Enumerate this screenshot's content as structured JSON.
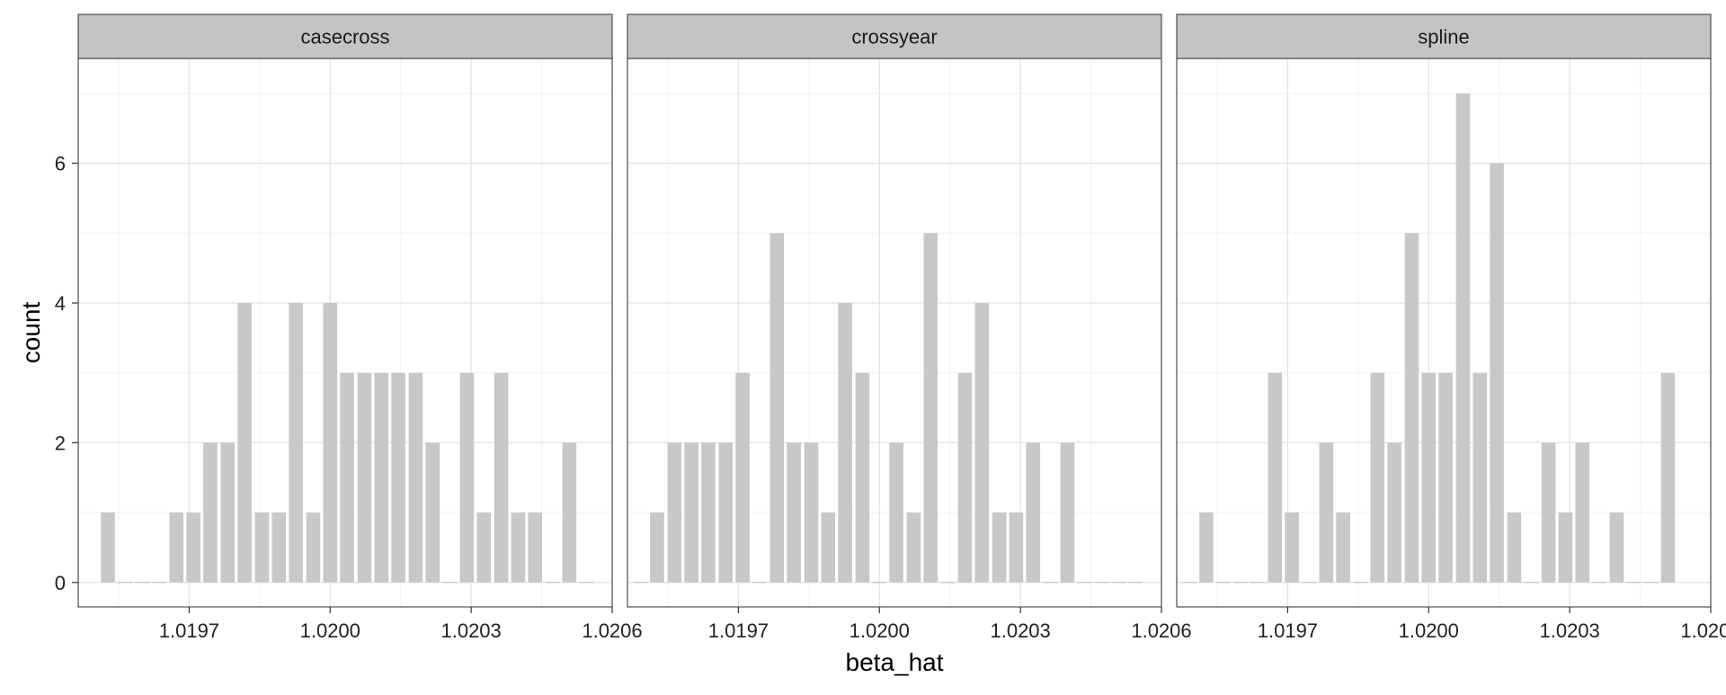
{
  "chart_data": {
    "type": "bar",
    "subtype": "faceted histogram",
    "xlabel": "beta_hat",
    "ylabel": "count",
    "ylim": [
      0,
      7
    ],
    "y_ticks": [
      0,
      2,
      4,
      6
    ],
    "x_ticks": [
      1.0197,
      1.02,
      1.0203,
      1.0206
    ],
    "x_tick_labels": [
      "1.0197",
      "1.0200",
      "1.0203",
      "1.0206"
    ],
    "grid": true,
    "bar_color": "#c8c8c8",
    "strip_color": "#c4c4c4",
    "facets": [
      {
        "name": "casecross",
        "bins": [
          {
            "x": 1.019527,
            "count": 1
          },
          {
            "x": 1.019564,
            "count": 0
          },
          {
            "x": 1.0196,
            "count": 0
          },
          {
            "x": 1.019636,
            "count": 0
          },
          {
            "x": 1.019673,
            "count": 1
          },
          {
            "x": 1.019709,
            "count": 1
          },
          {
            "x": 1.019745,
            "count": 2
          },
          {
            "x": 1.019782,
            "count": 2
          },
          {
            "x": 1.019818,
            "count": 4
          },
          {
            "x": 1.019855,
            "count": 1
          },
          {
            "x": 1.019891,
            "count": 1
          },
          {
            "x": 1.019927,
            "count": 4
          },
          {
            "x": 1.019964,
            "count": 1
          },
          {
            "x": 1.02,
            "count": 4
          },
          {
            "x": 1.020036,
            "count": 3
          },
          {
            "x": 1.020073,
            "count": 3
          },
          {
            "x": 1.020109,
            "count": 3
          },
          {
            "x": 1.020145,
            "count": 3
          },
          {
            "x": 1.020182,
            "count": 3
          },
          {
            "x": 1.020218,
            "count": 2
          },
          {
            "x": 1.020255,
            "count": 0
          },
          {
            "x": 1.020291,
            "count": 3
          },
          {
            "x": 1.020327,
            "count": 1
          },
          {
            "x": 1.020364,
            "count": 3
          },
          {
            "x": 1.0204,
            "count": 1
          },
          {
            "x": 1.020436,
            "count": 1
          },
          {
            "x": 1.020473,
            "count": 0
          },
          {
            "x": 1.020509,
            "count": 2
          },
          {
            "x": 1.020545,
            "count": 0
          }
        ]
      },
      {
        "name": "crossyear",
        "bins": [
          {
            "x": 1.019491,
            "count": 0
          },
          {
            "x": 1.019527,
            "count": 1
          },
          {
            "x": 1.019564,
            "count": 2
          },
          {
            "x": 1.0196,
            "count": 2
          },
          {
            "x": 1.019636,
            "count": 2
          },
          {
            "x": 1.019673,
            "count": 2
          },
          {
            "x": 1.019709,
            "count": 3
          },
          {
            "x": 1.019745,
            "count": 0
          },
          {
            "x": 1.019782,
            "count": 5
          },
          {
            "x": 1.019818,
            "count": 2
          },
          {
            "x": 1.019855,
            "count": 2
          },
          {
            "x": 1.019891,
            "count": 1
          },
          {
            "x": 1.019927,
            "count": 4
          },
          {
            "x": 1.019964,
            "count": 3
          },
          {
            "x": 1.02,
            "count": 0
          },
          {
            "x": 1.020036,
            "count": 2
          },
          {
            "x": 1.020073,
            "count": 1
          },
          {
            "x": 1.020109,
            "count": 5
          },
          {
            "x": 1.020145,
            "count": 0
          },
          {
            "x": 1.020182,
            "count": 3
          },
          {
            "x": 1.020218,
            "count": 4
          },
          {
            "x": 1.020255,
            "count": 1
          },
          {
            "x": 1.020291,
            "count": 1
          },
          {
            "x": 1.020327,
            "count": 2
          },
          {
            "x": 1.020364,
            "count": 0
          },
          {
            "x": 1.0204,
            "count": 2
          },
          {
            "x": 1.020436,
            "count": 0
          },
          {
            "x": 1.020473,
            "count": 0
          },
          {
            "x": 1.020509,
            "count": 0
          },
          {
            "x": 1.020545,
            "count": 0
          }
        ]
      },
      {
        "name": "spline",
        "bins": [
          {
            "x": 1.019491,
            "count": 0
          },
          {
            "x": 1.019527,
            "count": 1
          },
          {
            "x": 1.019564,
            "count": 0
          },
          {
            "x": 1.0196,
            "count": 0
          },
          {
            "x": 1.019636,
            "count": 0
          },
          {
            "x": 1.019673,
            "count": 3
          },
          {
            "x": 1.019709,
            "count": 1
          },
          {
            "x": 1.019745,
            "count": 0
          },
          {
            "x": 1.019782,
            "count": 2
          },
          {
            "x": 1.019818,
            "count": 1
          },
          {
            "x": 1.019855,
            "count": 0
          },
          {
            "x": 1.019891,
            "count": 3
          },
          {
            "x": 1.019927,
            "count": 2
          },
          {
            "x": 1.019964,
            "count": 5
          },
          {
            "x": 1.02,
            "count": 3
          },
          {
            "x": 1.020036,
            "count": 3
          },
          {
            "x": 1.020073,
            "count": 7
          },
          {
            "x": 1.020109,
            "count": 3
          },
          {
            "x": 1.020145,
            "count": 6
          },
          {
            "x": 1.020182,
            "count": 1
          },
          {
            "x": 1.020218,
            "count": 0
          },
          {
            "x": 1.020255,
            "count": 2
          },
          {
            "x": 1.020291,
            "count": 1
          },
          {
            "x": 1.020327,
            "count": 2
          },
          {
            "x": 1.020364,
            "count": 0
          },
          {
            "x": 1.0204,
            "count": 1
          },
          {
            "x": 1.020436,
            "count": 0
          },
          {
            "x": 1.020473,
            "count": 0
          },
          {
            "x": 1.020509,
            "count": 3
          }
        ]
      }
    ]
  }
}
